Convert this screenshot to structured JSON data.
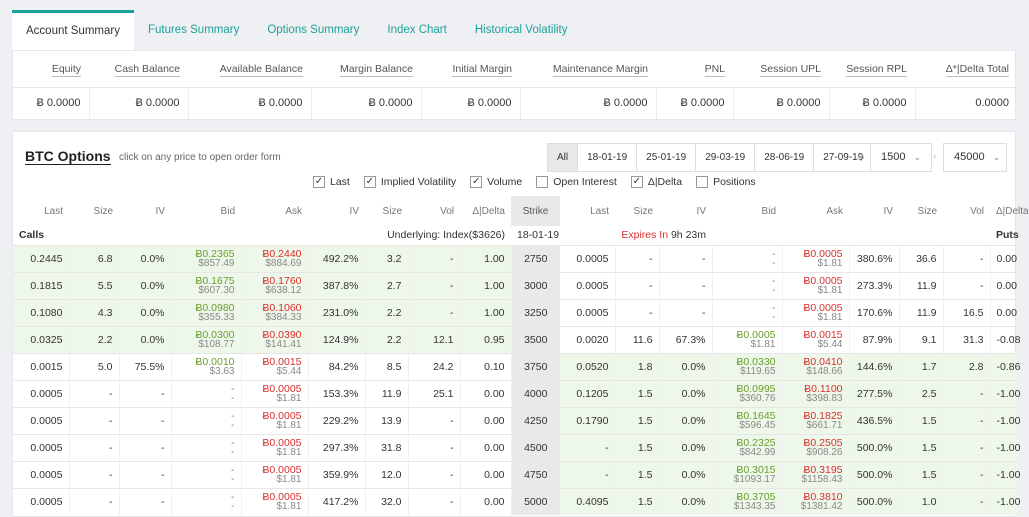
{
  "tabs": [
    "Account Summary",
    "Futures Summary",
    "Options Summary",
    "Index Chart",
    "Historical Volatility"
  ],
  "summary": {
    "headers": [
      "Equity",
      "Cash Balance",
      "Available Balance",
      "Margin Balance",
      "Initial Margin",
      "Maintenance Margin",
      "PNL",
      "Session UPL",
      "Session RPL",
      "Δ*|Delta Total"
    ],
    "values": [
      "Ƀ 0.0000",
      "Ƀ 0.0000",
      "Ƀ 0.0000",
      "Ƀ 0.0000",
      "Ƀ 0.0000",
      "Ƀ 0.0000",
      "Ƀ 0.0000",
      "Ƀ 0.0000",
      "Ƀ 0.0000",
      "0.0000"
    ]
  },
  "options": {
    "title": "BTC Options",
    "subtitle": "click on any price to open order form",
    "dates": [
      "All",
      "18-01-19",
      "25-01-19",
      "29-03-19",
      "28-06-19",
      "27-09-19"
    ],
    "min_strike": "1500",
    "max_strike": "45000",
    "checkboxes": [
      {
        "label": "Last",
        "checked": true
      },
      {
        "label": "Implied Volatility",
        "checked": true
      },
      {
        "label": "Volume",
        "checked": true
      },
      {
        "label": "Open Interest",
        "checked": false
      },
      {
        "label": "Δ|Delta",
        "checked": true
      },
      {
        "label": "Positions",
        "checked": false
      }
    ],
    "columns": [
      "Last",
      "Size",
      "IV",
      "Bid",
      "Ask",
      "IV",
      "Size",
      "Vol",
      "Δ|Delta",
      "Strike",
      "Last",
      "Size",
      "IV",
      "Bid",
      "Ask",
      "IV",
      "Size",
      "Vol",
      "Δ|Delta"
    ],
    "calls_label": "Calls",
    "underlying": "Underlying: Index($3626)",
    "expiry_date": "18-01-19",
    "expires_in_label": "Expires In",
    "expires_in": "9h 23m",
    "puts_label": "Puts",
    "rows": [
      {
        "strike": "2750",
        "c": [
          "0.2445",
          "6.8",
          "0.0%",
          [
            "Ƀ0.2365",
            "$857.49"
          ],
          [
            "Ƀ0.2440",
            "$884.69"
          ],
          "492.2%",
          "3.2",
          "-",
          "1.00"
        ],
        "p": [
          "0.0005",
          "-",
          "-",
          [
            "-",
            "-"
          ],
          [
            "Ƀ0.0005",
            "$1.81"
          ],
          "380.6%",
          "36.6",
          "-",
          "0.00"
        ],
        "citm": true,
        "pitm": false
      },
      {
        "strike": "3000",
        "c": [
          "0.1815",
          "5.5",
          "0.0%",
          [
            "Ƀ0.1675",
            "$607.30"
          ],
          [
            "Ƀ0.1760",
            "$638.12"
          ],
          "387.8%",
          "2.7",
          "-",
          "1.00"
        ],
        "p": [
          "0.0005",
          "-",
          "-",
          [
            "-",
            "-"
          ],
          [
            "Ƀ0.0005",
            "$1.81"
          ],
          "273.3%",
          "11.9",
          "-",
          "0.00"
        ],
        "citm": true,
        "pitm": false
      },
      {
        "strike": "3250",
        "c": [
          "0.1080",
          "4.3",
          "0.0%",
          [
            "Ƀ0.0980",
            "$355.33"
          ],
          [
            "Ƀ0.1060",
            "$384.33"
          ],
          "231.0%",
          "2.2",
          "-",
          "1.00"
        ],
        "p": [
          "0.0005",
          "-",
          "-",
          [
            "-",
            "-"
          ],
          [
            "Ƀ0.0005",
            "$1.81"
          ],
          "170.6%",
          "11.9",
          "16.5",
          "0.00"
        ],
        "citm": true,
        "pitm": false
      },
      {
        "strike": "3500",
        "c": [
          "0.0325",
          "2.2",
          "0.0%",
          [
            "Ƀ0.0300",
            "$108.77"
          ],
          [
            "Ƀ0.0390",
            "$141.41"
          ],
          "124.9%",
          "2.2",
          "12.1",
          "0.95"
        ],
        "p": [
          "0.0020",
          "11.6",
          "67.3%",
          [
            "Ƀ0.0005",
            "$1.81"
          ],
          [
            "Ƀ0.0015",
            "$5.44"
          ],
          "87.9%",
          "9.1",
          "31.3",
          "-0.08"
        ],
        "citm": true,
        "pitm": false
      },
      {
        "strike": "3750",
        "c": [
          "0.0015",
          "5.0",
          "75.5%",
          [
            "Ƀ0.0010",
            "$3.63"
          ],
          [
            "Ƀ0.0015",
            "$5.44"
          ],
          "84.2%",
          "8.5",
          "24.2",
          "0.10"
        ],
        "p": [
          "0.0520",
          "1.8",
          "0.0%",
          [
            "Ƀ0.0330",
            "$119.65"
          ],
          [
            "Ƀ0.0410",
            "$148.66"
          ],
          "144.6%",
          "1.7",
          "2.8",
          "-0.86"
        ],
        "citm": false,
        "pitm": true
      },
      {
        "strike": "4000",
        "c": [
          "0.0005",
          "-",
          "-",
          [
            "-",
            "-"
          ],
          [
            "Ƀ0.0005",
            "$1.81"
          ],
          "153.3%",
          "11.9",
          "25.1",
          "0.00"
        ],
        "p": [
          "0.1205",
          "1.5",
          "0.0%",
          [
            "Ƀ0.0995",
            "$360.76"
          ],
          [
            "Ƀ0.1100",
            "$398.83"
          ],
          "277.5%",
          "2.5",
          "-",
          "-1.00"
        ],
        "citm": false,
        "pitm": true
      },
      {
        "strike": "4250",
        "c": [
          "0.0005",
          "-",
          "-",
          [
            "-",
            "-"
          ],
          [
            "Ƀ0.0005",
            "$1.81"
          ],
          "229.2%",
          "13.9",
          "-",
          "0.00"
        ],
        "p": [
          "0.1790",
          "1.5",
          "0.0%",
          [
            "Ƀ0.1645",
            "$596.45"
          ],
          [
            "Ƀ0.1825",
            "$661.71"
          ],
          "436.5%",
          "1.5",
          "-",
          "-1.00"
        ],
        "citm": false,
        "pitm": true
      },
      {
        "strike": "4500",
        "c": [
          "0.0005",
          "-",
          "-",
          [
            "-",
            "-"
          ],
          [
            "Ƀ0.0005",
            "$1.81"
          ],
          "297.3%",
          "31.8",
          "-",
          "0.00"
        ],
        "p": [
          "-",
          "1.5",
          "0.0%",
          [
            "Ƀ0.2325",
            "$842.99"
          ],
          [
            "Ƀ0.2505",
            "$908.26"
          ],
          "500.0%",
          "1.5",
          "-",
          "-1.00"
        ],
        "citm": false,
        "pitm": true
      },
      {
        "strike": "4750",
        "c": [
          "0.0005",
          "-",
          "-",
          [
            "-",
            "-"
          ],
          [
            "Ƀ0.0005",
            "$1.81"
          ],
          "359.9%",
          "12.0",
          "-",
          "0.00"
        ],
        "p": [
          "-",
          "1.5",
          "0.0%",
          [
            "Ƀ0.3015",
            "$1093.17"
          ],
          [
            "Ƀ0.3195",
            "$1158.43"
          ],
          "500.0%",
          "1.5",
          "-",
          "-1.00"
        ],
        "citm": false,
        "pitm": true
      },
      {
        "strike": "5000",
        "c": [
          "0.0005",
          "-",
          "-",
          [
            "-",
            "-"
          ],
          [
            "Ƀ0.0005",
            "$1.81"
          ],
          "417.2%",
          "32.0",
          "-",
          "0.00"
        ],
        "p": [
          "0.4095",
          "1.5",
          "0.0%",
          [
            "Ƀ0.3705",
            "$1343.35"
          ],
          [
            "Ƀ0.3810",
            "$1381.42"
          ],
          "500.0%",
          "1.0",
          "-",
          "-1.00"
        ],
        "citm": false,
        "pitm": true
      }
    ]
  },
  "colors": {
    "accent": "#1fa09a",
    "bid": "#6a9e2c",
    "ask": "#d9302f",
    "itm_bg": "#eef8ea"
  }
}
